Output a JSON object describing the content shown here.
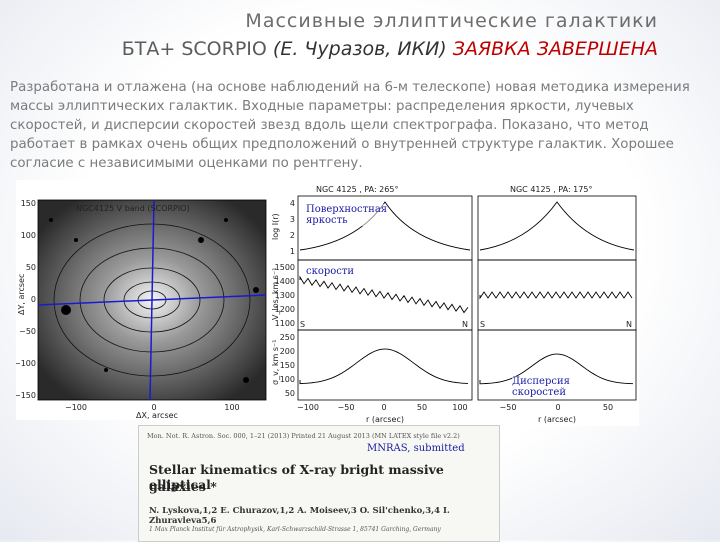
{
  "slide": {
    "title_line1": "Массивные эллиптические галактики",
    "title_line2_part1": "БТА+ SCORPIO",
    "title_line2_part2": "(Е. Чуразов, ИКИ)",
    "title_line2_part3": "ЗАЯВКА ЗАВЕРШЕНА",
    "paragraph": "Разработана и отлажена (на основе наблюдений на 6-м телескопе) новая методика измерения массы  эллиптических галактик. Входные параметры: распределения яркости, лучевых скоростей, и дисперсии скоростей звезд вдоль щели спектрографа.  Показано, что метод работает в рамках очень общих предположений о внутренней структуре галактик. Хорошее согласие с независимыми оценками по рентгену."
  },
  "left_image": {
    "title": "NGC4125 V band (SCORPIO)",
    "ylabel": "ΔY, arcsec",
    "xlabel": "ΔX, arcsec",
    "yticks": [
      "150",
      "100",
      "50",
      "0",
      "−50",
      "−100",
      "−150"
    ],
    "xticks": [
      "−100",
      "0",
      "100"
    ]
  },
  "right_plots": {
    "panel_left_title": "NGC 4125 , PA: 265°",
    "panel_right_title": "NGC 4125 , PA: 175°",
    "row1_ylabel": "log I(r)",
    "row2_ylabel": "V_los, km s⁻¹",
    "row3_ylabel": "σ_v, km s⁻¹",
    "row1_yticks": [
      "4",
      "3",
      "2",
      "1"
    ],
    "row2_yticks": [
      "1500",
      "1400",
      "1300",
      "1200",
      "1100"
    ],
    "row3_yticks": [
      "250",
      "200",
      "150",
      "100",
      "50"
    ],
    "xticks_left": [
      "−100",
      "−50",
      "0",
      "50",
      "100"
    ],
    "xticks_right": [
      "−50",
      "0",
      "50"
    ],
    "xlabel_left": "r (arcsec)",
    "xlabel_right": "r (arcsec)",
    "label_s_left": "S",
    "label_n_left": "N",
    "label_s_right": "S",
    "label_n_right": "N",
    "ann_surface": "Поверхностная яркость",
    "ann_velocity": "скорости",
    "ann_dispersion": "Дисперсия скоростей"
  },
  "paper": {
    "header_left": "Mon. Not. R. Astron. Soc. 000, 1–21 (2013)   Printed 21 August 2013   (MN LATEX style file v2.2)",
    "submitted": "MNRAS, submitted",
    "title_line1": "Stellar kinematics of X-ray bright massive elliptical",
    "title_line2": "galaxies *",
    "authors": "N. Lyskova,1,2 E. Churazov,1,2 A. Moiseev,3 O. Sil'chenko,3,4 I. Zhuravleva5,6",
    "affil": "1 Max Planck Institut für Astrophysik, Karl-Schwarzschild-Strasse 1, 85741 Garching, Germany"
  }
}
